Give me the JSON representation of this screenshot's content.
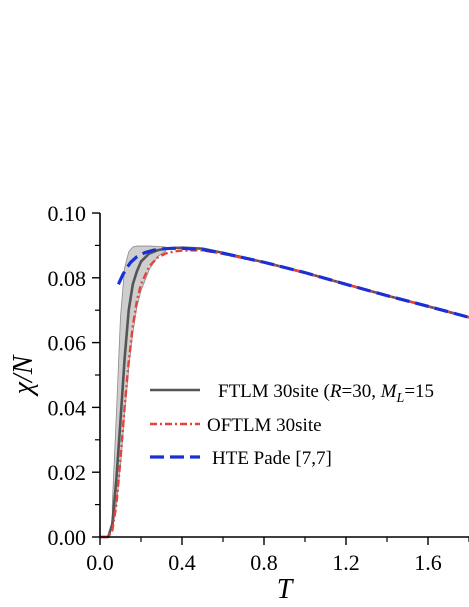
{
  "chart_data": {
    "type": "line",
    "xlabel": "T",
    "ylabel": "χ/N",
    "xlim": [
      0.0,
      1.8
    ],
    "ylim": [
      0.0,
      0.1
    ],
    "xticks": [
      "0.0",
      "0.4",
      "0.8",
      "1.2",
      "1.6"
    ],
    "yticks": [
      "0.00",
      "0.02",
      "0.04",
      "0.06",
      "0.08",
      "0.10"
    ],
    "legend_placement": "center-right",
    "series": [
      {
        "name": "FTLM 30site",
        "name_prefix": "FTLM 30site (",
        "name_r": "R",
        "name_r_value": "=30, ",
        "name_m": "M",
        "name_m_sub": "L",
        "name_m_value": "=15",
        "color": "#555555",
        "style": "solid",
        "x": [
          0.0,
          0.04,
          0.06,
          0.08,
          0.1,
          0.12,
          0.14,
          0.16,
          0.18,
          0.2,
          0.24,
          0.28,
          0.32,
          0.36,
          0.4,
          0.5,
          0.6,
          0.8,
          1.0,
          1.2,
          1.4,
          1.6,
          1.8
        ],
        "y": [
          0.0,
          0.0,
          0.004,
          0.018,
          0.036,
          0.055,
          0.07,
          0.078,
          0.082,
          0.085,
          0.0875,
          0.0885,
          0.089,
          0.0892,
          0.0893,
          0.089,
          0.0877,
          0.0848,
          0.0816,
          0.078,
          0.0745,
          0.0712,
          0.0678
        ]
      },
      {
        "name": "OFTLM 30site",
        "color": "#e8433b",
        "style": "dash-dot",
        "x": [
          0.0,
          0.04,
          0.06,
          0.08,
          0.1,
          0.12,
          0.14,
          0.16,
          0.18,
          0.2,
          0.24,
          0.28,
          0.32,
          0.36,
          0.4,
          0.5,
          0.6,
          0.8,
          1.0,
          1.2,
          1.4,
          1.6,
          1.8
        ],
        "y": [
          0.0,
          0.0,
          0.002,
          0.01,
          0.024,
          0.04,
          0.054,
          0.065,
          0.073,
          0.078,
          0.0835,
          0.0862,
          0.0875,
          0.0881,
          0.0884,
          0.0885,
          0.0874,
          0.0847,
          0.0815,
          0.078,
          0.0745,
          0.0712,
          0.0678
        ]
      },
      {
        "name": "HTE  Pade  [7,7]",
        "color": "#1a2fd6",
        "style": "dashed",
        "x": [
          0.09,
          0.11,
          0.13,
          0.15,
          0.18,
          0.22,
          0.26,
          0.3,
          0.35,
          0.4,
          0.5,
          0.6,
          0.8,
          1.0,
          1.2,
          1.4,
          1.6,
          1.8
        ],
        "y": [
          0.078,
          0.0808,
          0.083,
          0.0848,
          0.0865,
          0.0878,
          0.0885,
          0.0889,
          0.0891,
          0.0891,
          0.0887,
          0.0876,
          0.0848,
          0.0816,
          0.078,
          0.0745,
          0.0712,
          0.0678
        ]
      }
    ],
    "band": {
      "color": "#bdbdbd",
      "x": [
        0.06,
        0.08,
        0.1,
        0.12,
        0.14,
        0.16,
        0.18,
        0.2,
        0.24,
        0.28,
        0.32
      ],
      "upper": [
        0.01,
        0.038,
        0.068,
        0.083,
        0.088,
        0.0895,
        0.0898,
        0.0898,
        0.0898,
        0.0897,
        0.0895
      ],
      "lower": [
        0.002,
        0.01,
        0.022,
        0.038,
        0.052,
        0.063,
        0.071,
        0.076,
        0.0825,
        0.0865,
        0.0882
      ]
    }
  }
}
